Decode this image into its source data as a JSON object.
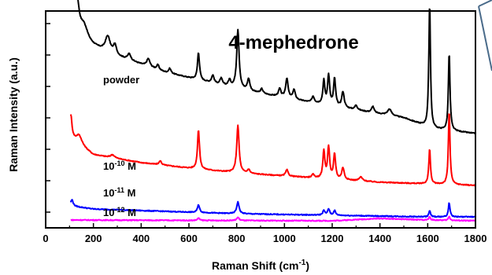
{
  "chart_data": {
    "type": "line",
    "title": "4-mephedrone",
    "xlabel": "Raman Shift (cm",
    "xlabel_sup": "-1",
    "xlabel_close": ")",
    "ylabel": "Raman Intensity (a.u.)",
    "xlim": [
      0,
      1800
    ],
    "x_ticks": [
      "0",
      "200",
      "400",
      "600",
      "800",
      "1000",
      "1200",
      "1400",
      "1600",
      "1800"
    ],
    "y_axis_tick_labels": "none",
    "grid": false,
    "legend": "none",
    "series": [
      {
        "name": "powder",
        "color": "#000000",
        "baseline": [
          [
            105,
            238
          ],
          [
            150,
            228
          ],
          [
            300,
            210
          ],
          [
            500,
            190
          ],
          [
            700,
            176
          ],
          [
            900,
            163
          ],
          [
            1100,
            152
          ],
          [
            1300,
            142
          ],
          [
            1500,
            132
          ],
          [
            1620,
            118
          ],
          [
            1800,
            112
          ]
        ],
        "peaks": [
          [
            110,
            80,
            5
          ],
          [
            120,
            75,
            5
          ],
          [
            130,
            40,
            12
          ],
          [
            160,
            20,
            20
          ],
          [
            260,
            20,
            12
          ],
          [
            290,
            12,
            8
          ],
          [
            350,
            8,
            8
          ],
          [
            430,
            10,
            8
          ],
          [
            470,
            6,
            6
          ],
          [
            520,
            6,
            6
          ],
          [
            640,
            35,
            5
          ],
          [
            700,
            10,
            6
          ],
          [
            735,
            8,
            6
          ],
          [
            770,
            8,
            6
          ],
          [
            805,
            75,
            6
          ],
          [
            850,
            15,
            6
          ],
          [
            905,
            6,
            6
          ],
          [
            980,
            10,
            6
          ],
          [
            1010,
            25,
            6
          ],
          [
            1040,
            12,
            6
          ],
          [
            1120,
            8,
            6
          ],
          [
            1165,
            30,
            5
          ],
          [
            1185,
            38,
            5
          ],
          [
            1210,
            35,
            5
          ],
          [
            1245,
            20,
            6
          ],
          [
            1300,
            6,
            6
          ],
          [
            1370,
            8,
            6
          ],
          [
            1440,
            8,
            10
          ],
          [
            1608,
            160,
            4
          ],
          [
            1690,
            100,
            4
          ]
        ]
      },
      {
        "name": "10⁻¹⁰ M",
        "label_base": "10",
        "label_exp": "-10",
        "label_unit": " M",
        "color": "#ff0000",
        "baseline": [
          [
            105,
            105
          ],
          [
            200,
            85
          ],
          [
            400,
            75
          ],
          [
            600,
            68
          ],
          [
            800,
            62
          ],
          [
            1000,
            58
          ],
          [
            1200,
            54
          ],
          [
            1400,
            50
          ],
          [
            1600,
            48
          ],
          [
            1800,
            46
          ]
        ],
        "peaks": [
          [
            105,
            30,
            6
          ],
          [
            140,
            12,
            15
          ],
          [
            280,
            4,
            10
          ],
          [
            480,
            5,
            6
          ],
          [
            640,
            50,
            5
          ],
          [
            805,
            60,
            6
          ],
          [
            850,
            5,
            6
          ],
          [
            1010,
            8,
            6
          ],
          [
            1120,
            4,
            6
          ],
          [
            1165,
            35,
            5
          ],
          [
            1185,
            40,
            5
          ],
          [
            1210,
            32,
            5
          ],
          [
            1245,
            15,
            6
          ],
          [
            1320,
            5,
            8
          ],
          [
            1608,
            45,
            4
          ],
          [
            1690,
            95,
            4
          ]
        ]
      },
      {
        "name": "10⁻¹¹ M",
        "label_base": "10",
        "label_exp": "-11",
        "label_unit": " M",
        "color": "#0000ff",
        "baseline": [
          [
            105,
            20
          ],
          [
            200,
            16
          ],
          [
            400,
            14
          ],
          [
            600,
            12
          ],
          [
            800,
            10
          ],
          [
            1000,
            9
          ],
          [
            1200,
            8
          ],
          [
            1400,
            7
          ],
          [
            1600,
            6
          ],
          [
            1800,
            6
          ]
        ],
        "peaks": [
          [
            110,
            8,
            6
          ],
          [
            640,
            10,
            5
          ],
          [
            805,
            15,
            6
          ],
          [
            1165,
            6,
            5
          ],
          [
            1185,
            8,
            5
          ],
          [
            1210,
            6,
            5
          ],
          [
            1608,
            8,
            4
          ],
          [
            1690,
            18,
            4
          ]
        ]
      },
      {
        "name": "10⁻¹² M",
        "label_base": "10",
        "label_exp": "-12",
        "label_unit": " M",
        "color": "#ff00ff",
        "baseline": [
          [
            105,
            2
          ],
          [
            600,
            1.5
          ],
          [
            1200,
            1
          ],
          [
            1400,
            4
          ],
          [
            1600,
            2
          ],
          [
            1800,
            1
          ]
        ],
        "peaks": [
          [
            640,
            3,
            5
          ],
          [
            805,
            4,
            6
          ],
          [
            1608,
            4,
            4
          ],
          [
            1690,
            5,
            4
          ]
        ]
      }
    ]
  }
}
